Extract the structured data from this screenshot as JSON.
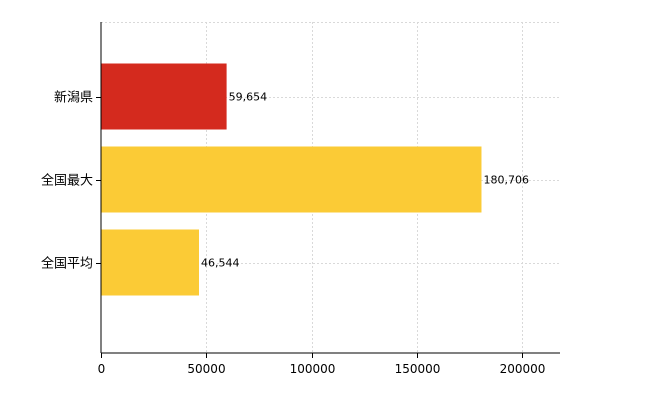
{
  "chart_data": {
    "type": "bar",
    "orientation": "horizontal",
    "categories": [
      "新潟県",
      "全国最大",
      "全国平均"
    ],
    "values": [
      59654,
      180706,
      46544
    ],
    "data_labels": [
      "59,654",
      "180,706",
      "46,544"
    ],
    "colors": [
      "#d42a1e",
      "#fbcb36",
      "#fbcb36"
    ],
    "title": "",
    "xlabel": "",
    "ylabel": "",
    "xlim": [
      0,
      218000
    ],
    "xticks": [
      0,
      50000,
      100000,
      150000,
      200000
    ],
    "xtick_labels": [
      "0",
      "50000",
      "100000",
      "150000",
      "200000"
    ],
    "grid": true,
    "legend": "none"
  }
}
